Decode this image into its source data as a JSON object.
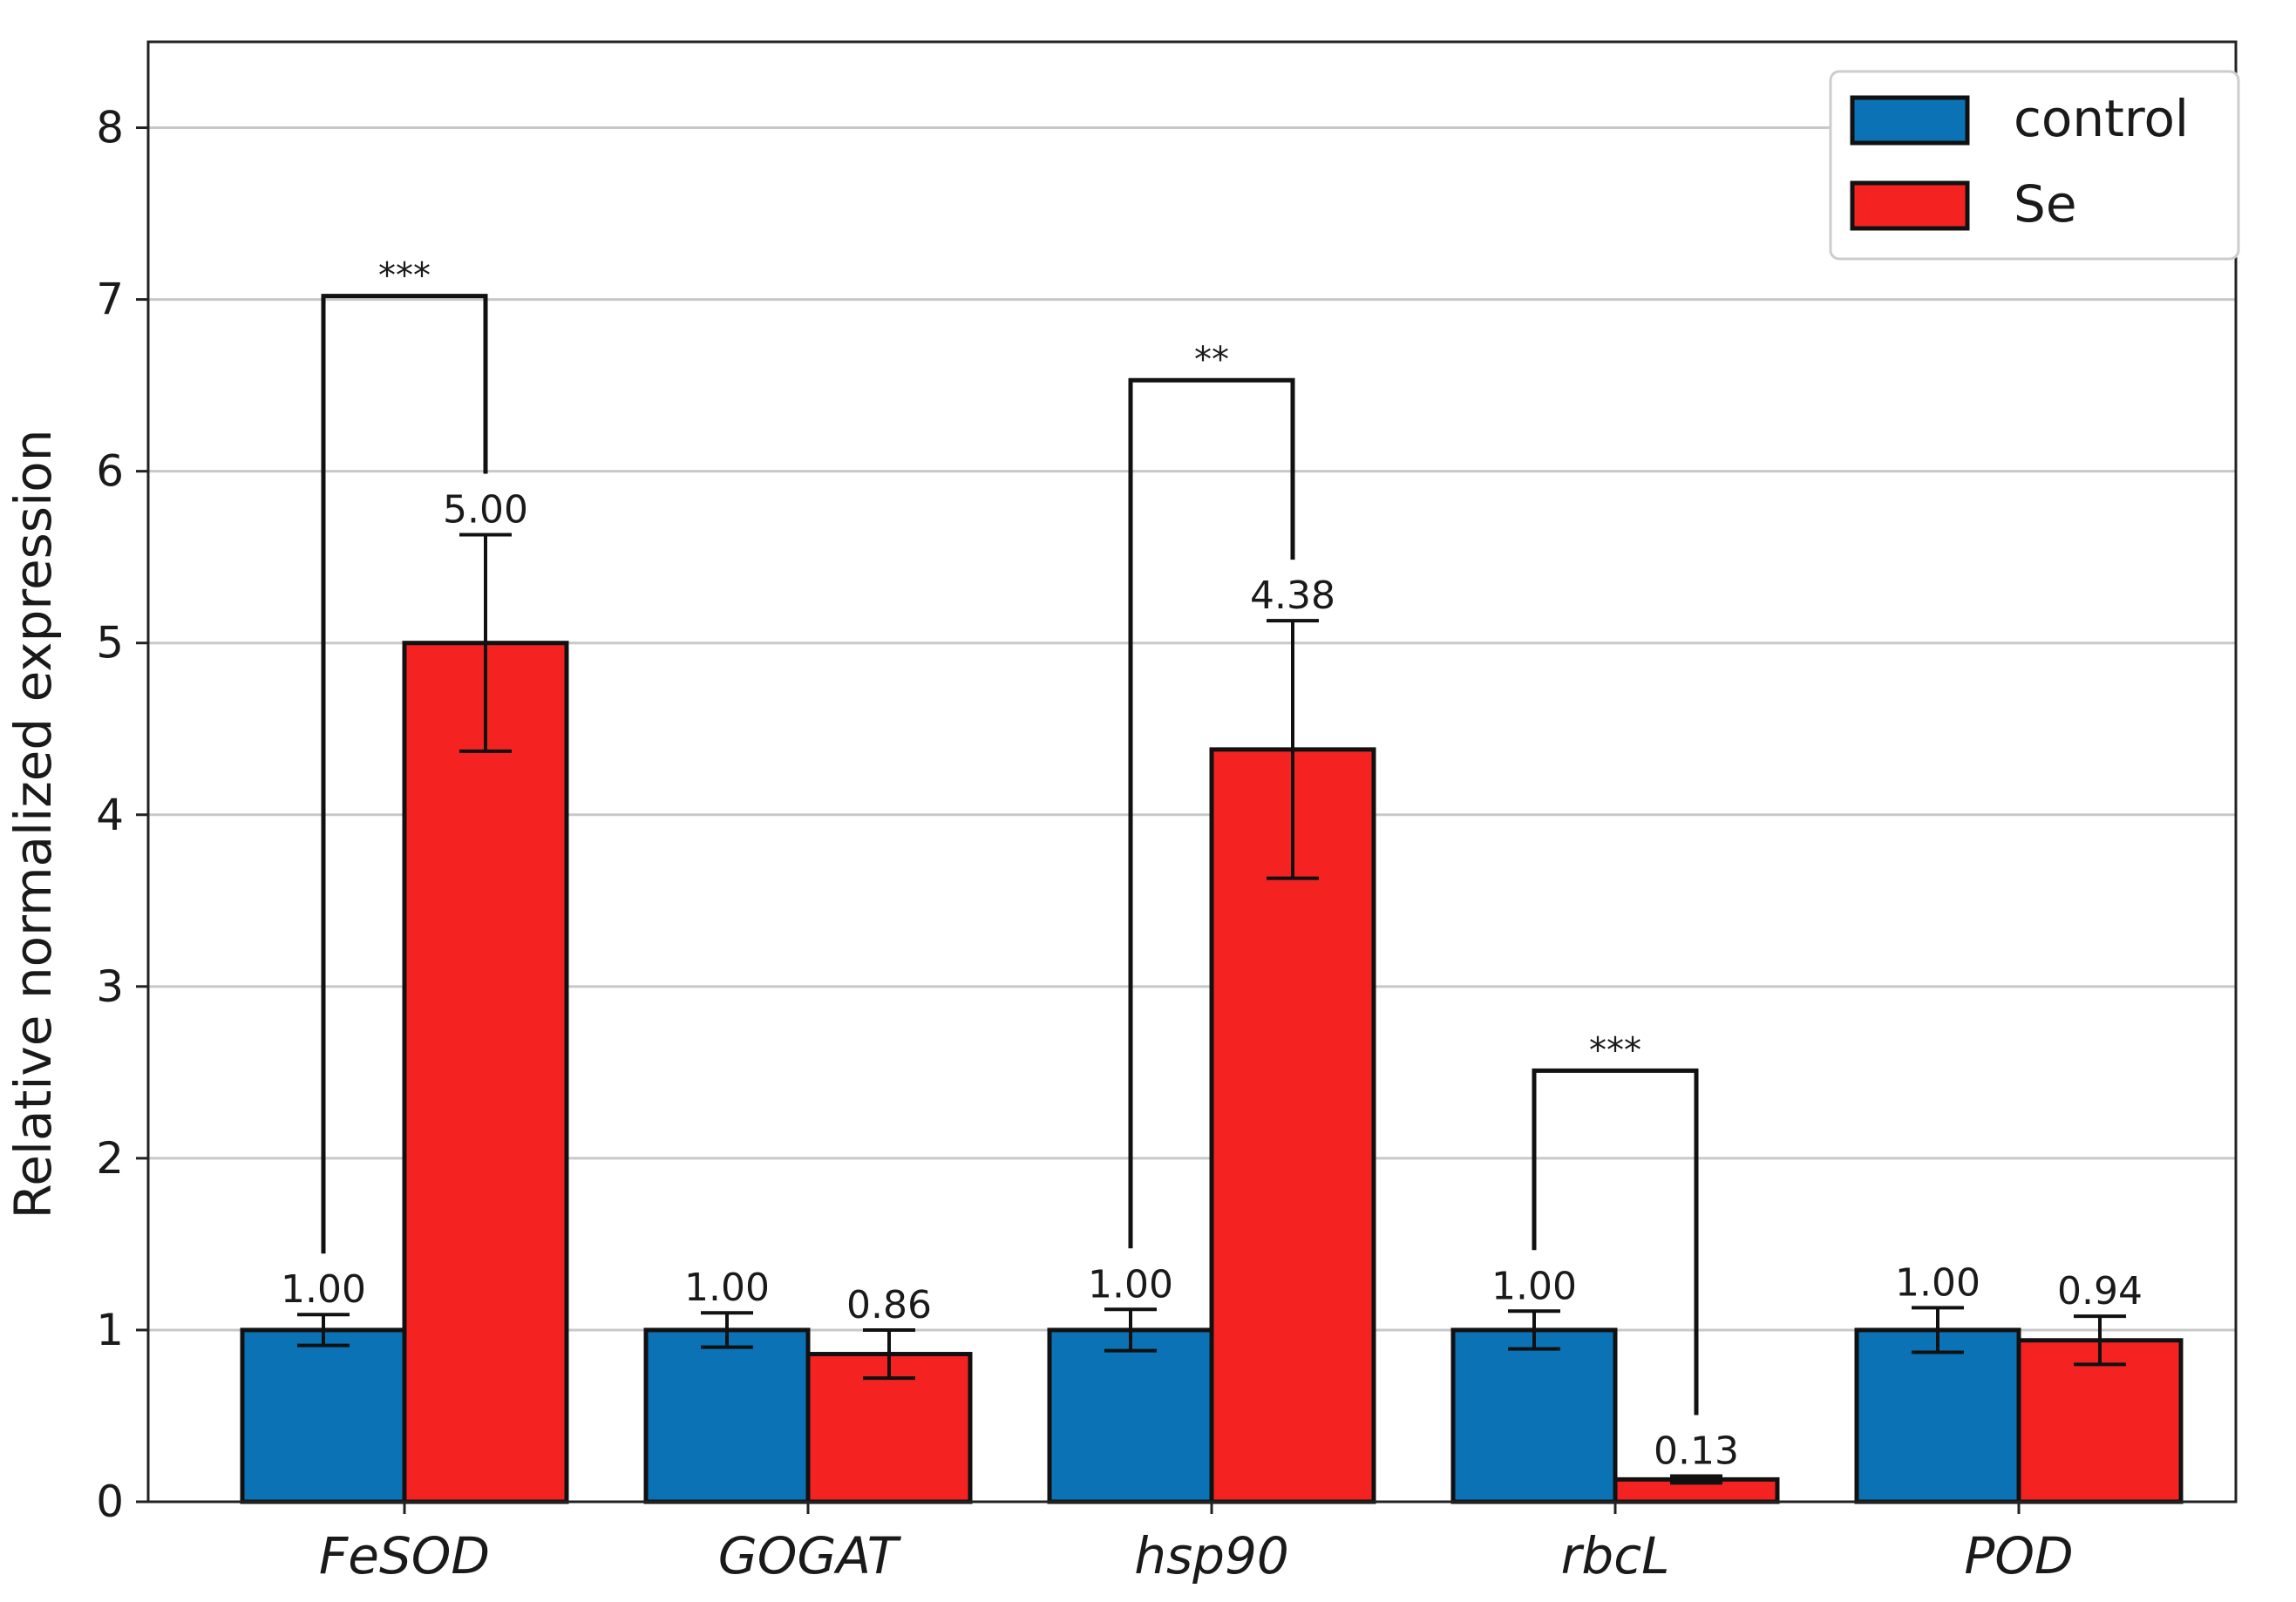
{
  "chart_data": {
    "type": "bar",
    "title": "",
    "xlabel": "",
    "ylabel": "Relative normalized expression",
    "ylim": [
      0,
      8.5
    ],
    "yticks": [
      0,
      1,
      2,
      3,
      4,
      5,
      6,
      7,
      8
    ],
    "grid": true,
    "legend_position": "top-right",
    "categories": [
      "FeSOD",
      "GOGAT",
      "hsp90",
      "rbcL",
      "POD"
    ],
    "series": [
      {
        "name": "control",
        "color": "#0b72b5",
        "values": [
          1.0,
          1.0,
          1.0,
          1.0,
          1.0
        ],
        "errors": [
          0.09,
          0.1,
          0.12,
          0.11,
          0.13
        ],
        "labels": [
          "1.00",
          "1.00",
          "1.00",
          "1.00",
          "1.00"
        ]
      },
      {
        "name": "Se",
        "color": "#f52222",
        "values": [
          5.0,
          0.86,
          4.38,
          0.13,
          0.94
        ],
        "errors": [
          0.63,
          0.14,
          0.75,
          0.02,
          0.14
        ],
        "labels": [
          "5.00",
          "0.86",
          "4.38",
          "0.13",
          "0.94"
        ]
      }
    ],
    "significance": [
      {
        "category": "FeSOD",
        "label": "***",
        "level": 7.02
      },
      {
        "category": "hsp90",
        "label": "**",
        "level": 6.53
      },
      {
        "category": "rbcL",
        "label": "***",
        "level": 2.51
      }
    ]
  }
}
